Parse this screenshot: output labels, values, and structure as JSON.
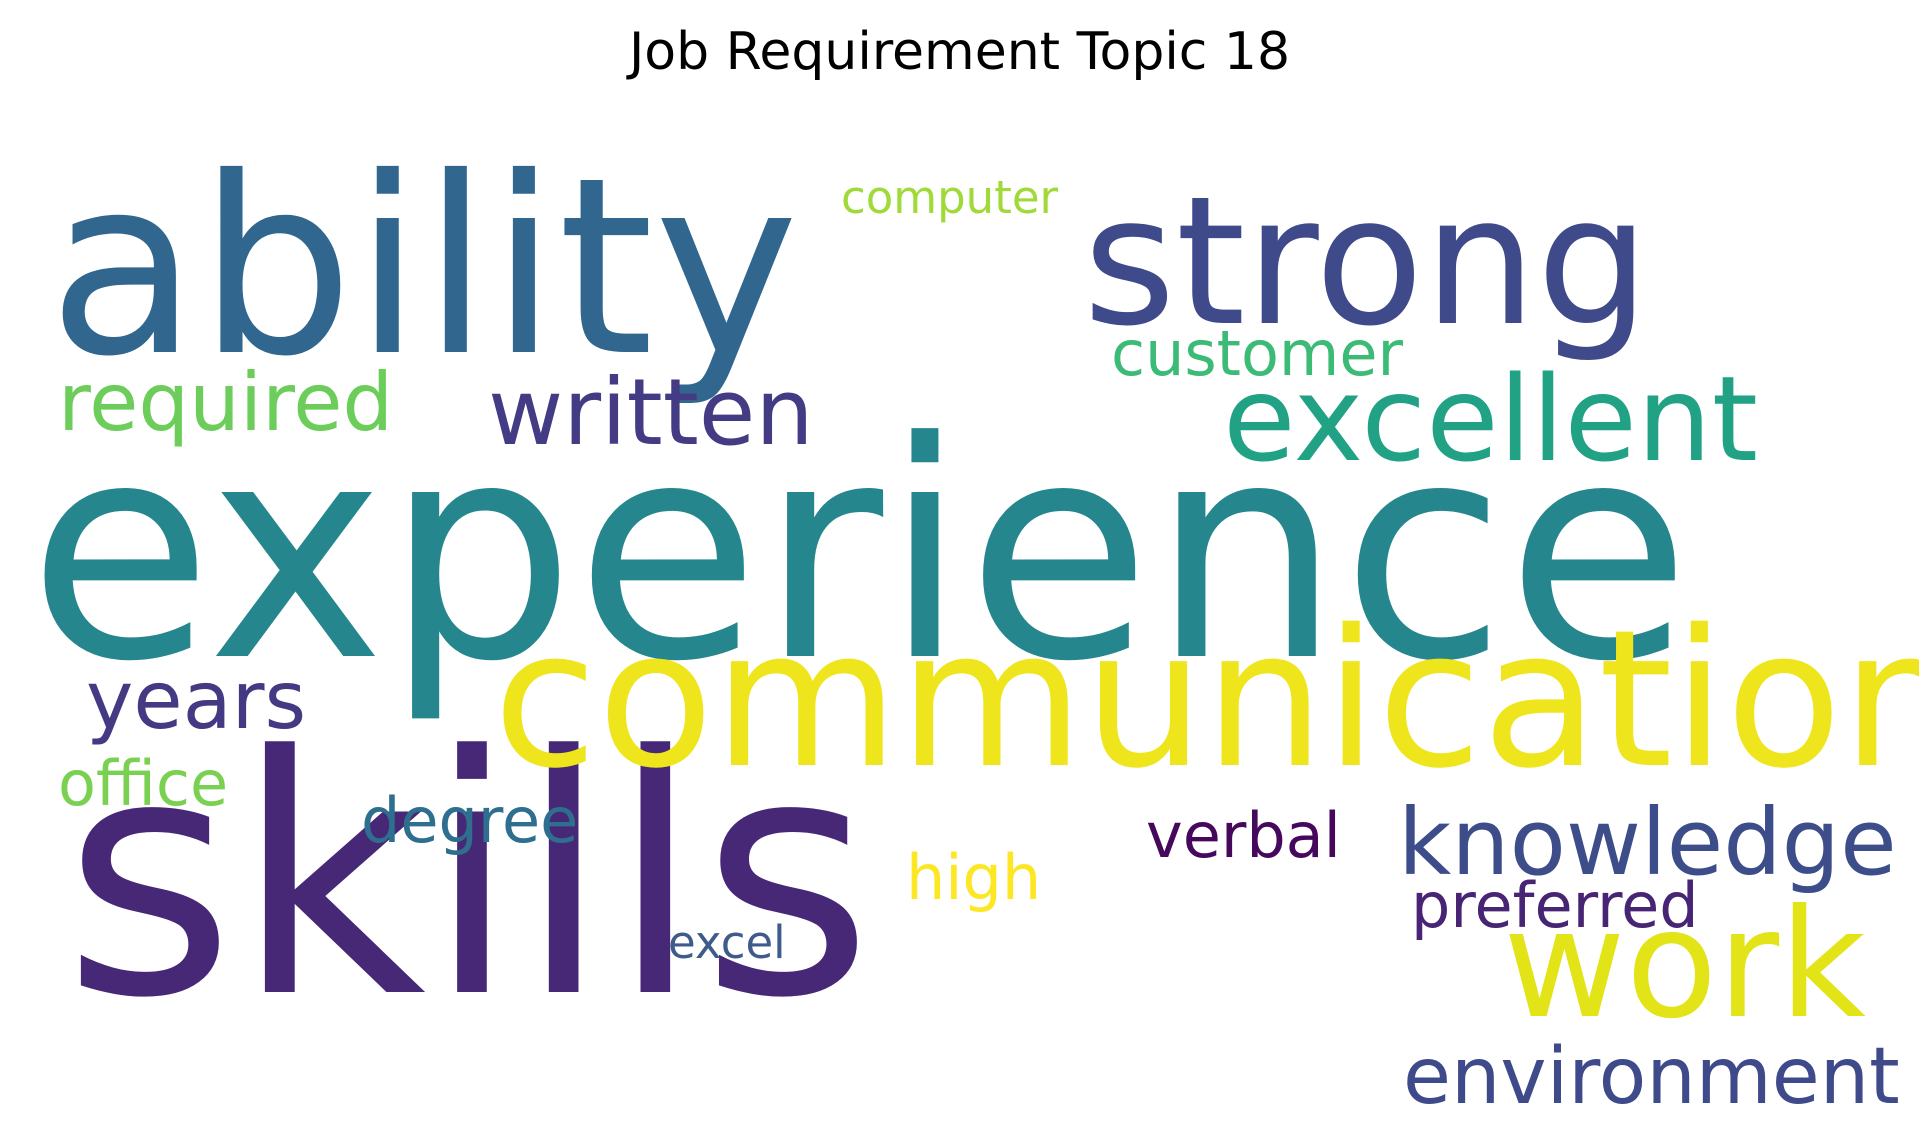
{
  "figure": {
    "title": "Job Requirement Topic 18",
    "background": "#ffffff"
  },
  "wordcloud": {
    "colormap": "viridis",
    "words": [
      {
        "key": "experience",
        "text": "experience",
        "color": "#25878d"
      },
      {
        "key": "skills",
        "text": "skills",
        "color": "#472877"
      },
      {
        "key": "ability",
        "text": "ability",
        "color": "#31668e"
      },
      {
        "key": "communication",
        "text": "communication",
        "color": "#efe51c"
      },
      {
        "key": "strong",
        "text": "strong",
        "color": "#3f4a8a"
      },
      {
        "key": "work",
        "text": "work",
        "color": "#e2e418"
      },
      {
        "key": "excellent",
        "text": "excellent",
        "color": "#22a284"
      },
      {
        "key": "written",
        "text": "written",
        "color": "#433b83"
      },
      {
        "key": "knowledge",
        "text": "knowledge",
        "color": "#3d4d8a"
      },
      {
        "key": "required",
        "text": "required",
        "color": "#6ccd5a"
      },
      {
        "key": "years",
        "text": "years",
        "color": "#443a83"
      },
      {
        "key": "environment",
        "text": "environment",
        "color": "#3e4a89"
      },
      {
        "key": "customer",
        "text": "customer",
        "color": "#3bbb75"
      },
      {
        "key": "office",
        "text": "office",
        "color": "#7ad151"
      },
      {
        "key": "degree",
        "text": "degree",
        "color": "#2e6e8e"
      },
      {
        "key": "verbal",
        "text": "verbal",
        "color": "#46085c"
      },
      {
        "key": "preferred",
        "text": "preferred",
        "color": "#482475"
      },
      {
        "key": "high",
        "text": "high",
        "color": "#fde725"
      },
      {
        "key": "computer",
        "text": "computer",
        "color": "#a0da39"
      },
      {
        "key": "excel",
        "text": "excel",
        "color": "#3e5b8b"
      }
    ]
  }
}
